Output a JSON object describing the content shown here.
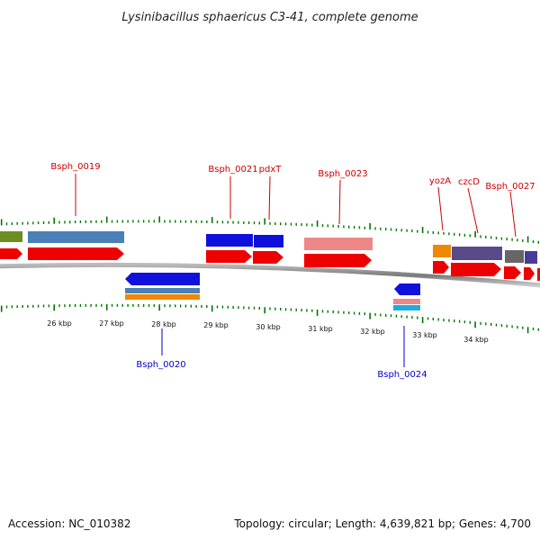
{
  "title": "Lysinibacillus sphaericus C3-41, complete genome",
  "footer": {
    "accession": "Accession: NC_010382",
    "summary": "Topology: circular; Length: 4,639,821 bp; Genes: 4,700"
  },
  "colors": {
    "label_forward": "#cc0000",
    "label_reverse": "#0000cc",
    "tick": "#007700",
    "backbone": "#8a8a8a"
  },
  "ruler": {
    "unit": "kbp",
    "labels": [
      "26 kbp",
      "27 kbp",
      "28 kbp",
      "29 kbp",
      "30 kbp",
      "31 kbp",
      "32 kbp",
      "33 kbp",
      "34 kbp"
    ]
  },
  "genes": {
    "forward": [
      "Bsph_0019",
      "Bsph_0021",
      "pdxT",
      "Bsph_0023",
      "yozA",
      "czcD",
      "Bsph_0027"
    ],
    "reverse": [
      "Bsph_0020",
      "Bsph_0024"
    ]
  },
  "feature_colors": {
    "cds": "#ee0000",
    "blue": "#1010dd",
    "steelblue": "#4a80b8",
    "olive": "#6b8e23",
    "salmon": "#ee8888",
    "orange": "#ee8800",
    "purple": "#5a4a8a",
    "gray": "#666666",
    "cyan": "#22aadd"
  }
}
